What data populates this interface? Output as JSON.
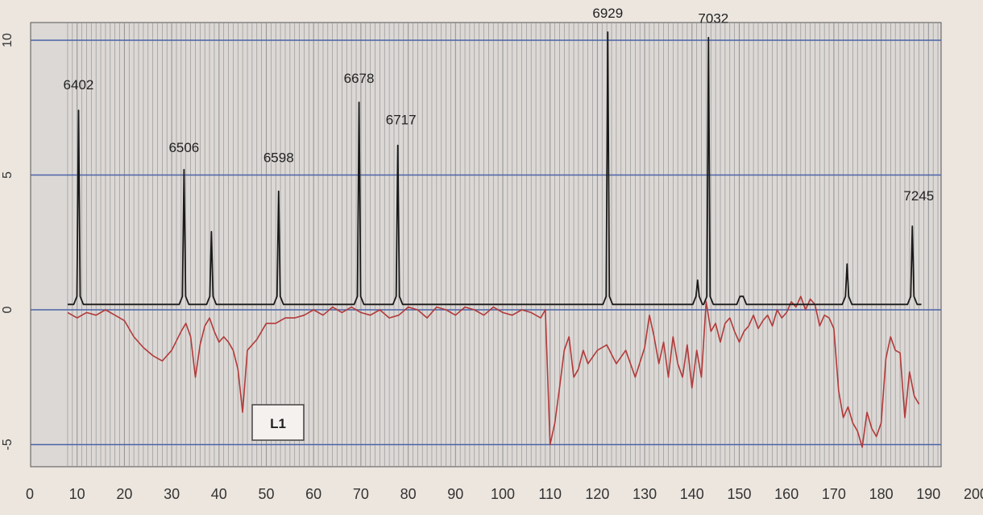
{
  "chart_data": {
    "type": "line",
    "title": "",
    "xlabel": "",
    "ylabel": "",
    "xlim": [
      0,
      200
    ],
    "ylim": [
      -5.6,
      10.8
    ],
    "x_ticks": [
      "0",
      "10",
      "20",
      "30",
      "40",
      "50",
      "60",
      "70",
      "80",
      "90",
      "100",
      "110",
      "120",
      "130",
      "140",
      "150",
      "160",
      "170",
      "180",
      "190",
      "200"
    ],
    "y_ticks": [
      "10",
      "5",
      "0",
      "-5"
    ],
    "grid": "dense vertical gridlines, horizontal lines at y = 10, 5, 0, -5",
    "legend": "none",
    "box_label": "L1",
    "colors": {
      "spectrum": "#1a1a1a",
      "difference": "#b23a3a",
      "grid": "#8f8f8f",
      "hline": "#4a63a8",
      "plot_bg": "#dcd8d5",
      "page_bg": "#ece6df"
    },
    "series": [
      {
        "name": "",
        "style": "peaks",
        "baseline": 0.2,
        "peaks": [
          {
            "x": 10.3,
            "y": 7.4,
            "label": "6402"
          },
          {
            "x": 32.6,
            "y": 5.2,
            "label": "6506"
          },
          {
            "x": 38.4,
            "y": 2.9,
            "label": ""
          },
          {
            "x": 52.6,
            "y": 4.4,
            "label": "6598"
          },
          {
            "x": 69.6,
            "y": 7.7,
            "label": "6678"
          },
          {
            "x": 77.8,
            "y": 6.1,
            "label": "6717"
          },
          {
            "x": 122.2,
            "y": 10.3,
            "label": "6929"
          },
          {
            "x": 141.2,
            "y": 1.1,
            "label": ""
          },
          {
            "x": 143.5,
            "y": 10.1,
            "label": "7032"
          },
          {
            "x": 150.5,
            "y": 0.5,
            "label": ""
          },
          {
            "x": 172.8,
            "y": 1.7,
            "label": ""
          },
          {
            "x": 186.6,
            "y": 3.1,
            "label": "7245"
          }
        ]
      },
      {
        "name": "",
        "style": "line",
        "x": [
          8,
          10,
          12,
          14,
          16,
          18,
          20,
          22,
          24,
          26,
          28,
          30,
          32,
          33,
          34,
          35,
          36,
          37,
          38,
          39,
          40,
          41,
          42,
          43,
          44,
          45,
          46,
          48,
          50,
          52,
          54,
          56,
          58,
          60,
          62,
          64,
          66,
          68,
          70,
          72,
          74,
          76,
          78,
          80,
          82,
          84,
          86,
          88,
          90,
          92,
          94,
          96,
          98,
          100,
          102,
          104,
          106,
          108,
          109,
          110,
          111,
          112,
          113,
          114,
          115,
          116,
          117,
          118,
          120,
          122,
          124,
          126,
          128,
          130,
          131,
          132,
          133,
          134,
          135,
          136,
          137,
          138,
          139,
          140,
          141,
          142,
          143,
          144,
          145,
          146,
          147,
          148,
          149,
          150,
          151,
          152,
          153,
          154,
          155,
          156,
          157,
          158,
          159,
          160,
          161,
          162,
          163,
          164,
          165,
          166,
          167,
          168,
          169,
          170,
          171,
          172,
          173,
          174,
          175,
          176,
          177,
          178,
          179,
          180,
          181,
          182,
          183,
          184,
          185,
          186,
          187,
          188
        ],
        "y": [
          -0.1,
          -0.3,
          -0.1,
          -0.2,
          0.0,
          -0.2,
          -0.4,
          -1.0,
          -1.4,
          -1.7,
          -1.9,
          -1.5,
          -0.8,
          -0.5,
          -1.0,
          -2.5,
          -1.3,
          -0.6,
          -0.3,
          -0.8,
          -1.2,
          -1.0,
          -1.2,
          -1.5,
          -2.2,
          -3.8,
          -1.5,
          -1.1,
          -0.5,
          -0.5,
          -0.3,
          -0.3,
          -0.2,
          0.0,
          -0.2,
          0.1,
          -0.1,
          0.1,
          -0.1,
          -0.2,
          0.0,
          -0.3,
          -0.2,
          0.1,
          0.0,
          -0.3,
          0.1,
          0.0,
          -0.2,
          0.1,
          0.0,
          -0.2,
          0.1,
          -0.1,
          -0.2,
          0.0,
          -0.1,
          -0.3,
          0.0,
          -5.0,
          -4.2,
          -2.9,
          -1.5,
          -1.0,
          -2.5,
          -2.2,
          -1.5,
          -2.0,
          -1.5,
          -1.3,
          -2.0,
          -1.5,
          -2.5,
          -1.4,
          -0.2,
          -1.0,
          -2.0,
          -1.2,
          -2.5,
          -1.0,
          -2.0,
          -2.5,
          -1.3,
          -2.9,
          -1.5,
          -2.5,
          0.3,
          -0.8,
          -0.5,
          -1.2,
          -0.5,
          -0.3,
          -0.8,
          -1.2,
          -0.8,
          -0.6,
          -0.2,
          -0.7,
          -0.4,
          -0.2,
          -0.6,
          0.0,
          -0.3,
          -0.1,
          0.3,
          0.1,
          0.5,
          0.0,
          0.4,
          0.2,
          -0.6,
          -0.2,
          -0.3,
          -0.7,
          -3.0,
          -4.0,
          -3.6,
          -4.2,
          -4.5,
          -5.1,
          -3.8,
          -4.4,
          -4.7,
          -4.2,
          -1.8,
          -1.0,
          -1.5,
          -1.6,
          -4.0,
          -2.3,
          -3.2,
          -3.5
        ]
      }
    ]
  }
}
